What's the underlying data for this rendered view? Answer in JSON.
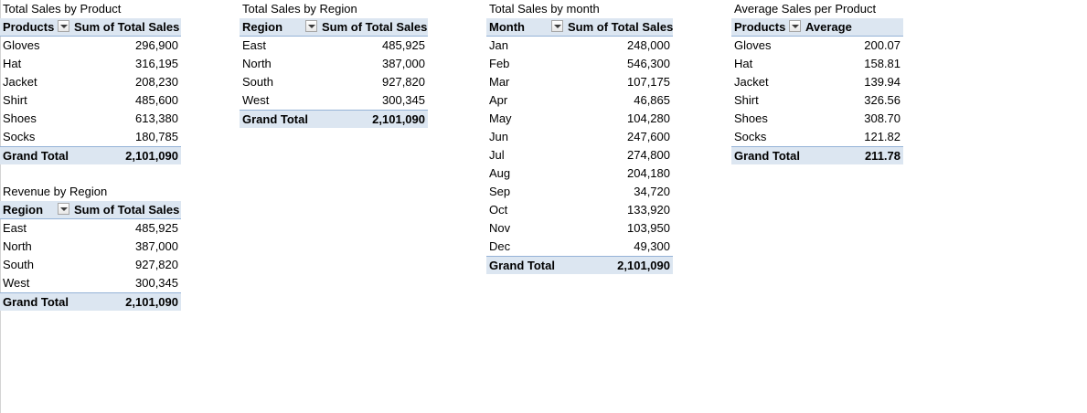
{
  "pivots": {
    "product": {
      "title": "Total Sales by Product",
      "header": [
        "Products",
        "Sum of Total Sales"
      ],
      "rows": [
        [
          "Gloves",
          "296,900"
        ],
        [
          "Hat",
          "316,195"
        ],
        [
          "Jacket",
          "208,230"
        ],
        [
          "Shirt",
          "485,600"
        ],
        [
          "Shoes",
          "613,380"
        ],
        [
          "Socks",
          "180,785"
        ]
      ],
      "total": [
        "Grand Total",
        "2,101,090"
      ]
    },
    "region_revenue": {
      "title": "Revenue by Region",
      "header": [
        "Region",
        "Sum of Total Sales"
      ],
      "rows": [
        [
          "East",
          "485,925"
        ],
        [
          "North",
          "387,000"
        ],
        [
          "South",
          "927,820"
        ],
        [
          "West",
          "300,345"
        ]
      ],
      "total": [
        "Grand Total",
        "2,101,090"
      ]
    },
    "region": {
      "title": "Total Sales by Region",
      "header": [
        "Region",
        "Sum of Total Sales"
      ],
      "rows": [
        [
          "East",
          "485,925"
        ],
        [
          "North",
          "387,000"
        ],
        [
          "South",
          "927,820"
        ],
        [
          "West",
          "300,345"
        ]
      ],
      "total": [
        "Grand Total",
        "2,101,090"
      ]
    },
    "month": {
      "title": "Total Sales by month",
      "header": [
        "Month",
        "Sum of Total Sales"
      ],
      "rows": [
        [
          "Jan",
          "248,000"
        ],
        [
          "Feb",
          "546,300"
        ],
        [
          "Mar",
          "107,175"
        ],
        [
          "Apr",
          "46,865"
        ],
        [
          "May",
          "104,280"
        ],
        [
          "Jun",
          "247,600"
        ],
        [
          "Jul",
          "274,800"
        ],
        [
          "Aug",
          "204,180"
        ],
        [
          "Sep",
          "34,720"
        ],
        [
          "Oct",
          "133,920"
        ],
        [
          "Nov",
          "103,950"
        ],
        [
          "Dec",
          "49,300"
        ]
      ],
      "total": [
        "Grand Total",
        "2,101,090"
      ]
    },
    "average": {
      "title": "Average Sales per Product",
      "header": [
        "Products",
        "Average"
      ],
      "rows": [
        [
          "Gloves",
          "200.07"
        ],
        [
          "Hat",
          "158.81"
        ],
        [
          "Jacket",
          "139.94"
        ],
        [
          "Shirt",
          "326.56"
        ],
        [
          "Shoes",
          "308.70"
        ],
        [
          "Socks",
          "121.82"
        ]
      ],
      "total": [
        "Grand Total",
        "211.78"
      ]
    }
  },
  "icons": {
    "filter_dropdown": "chevron-down-icon"
  },
  "colors": {
    "header_fill": "#dce6f1",
    "header_border": "#95b3d7"
  }
}
